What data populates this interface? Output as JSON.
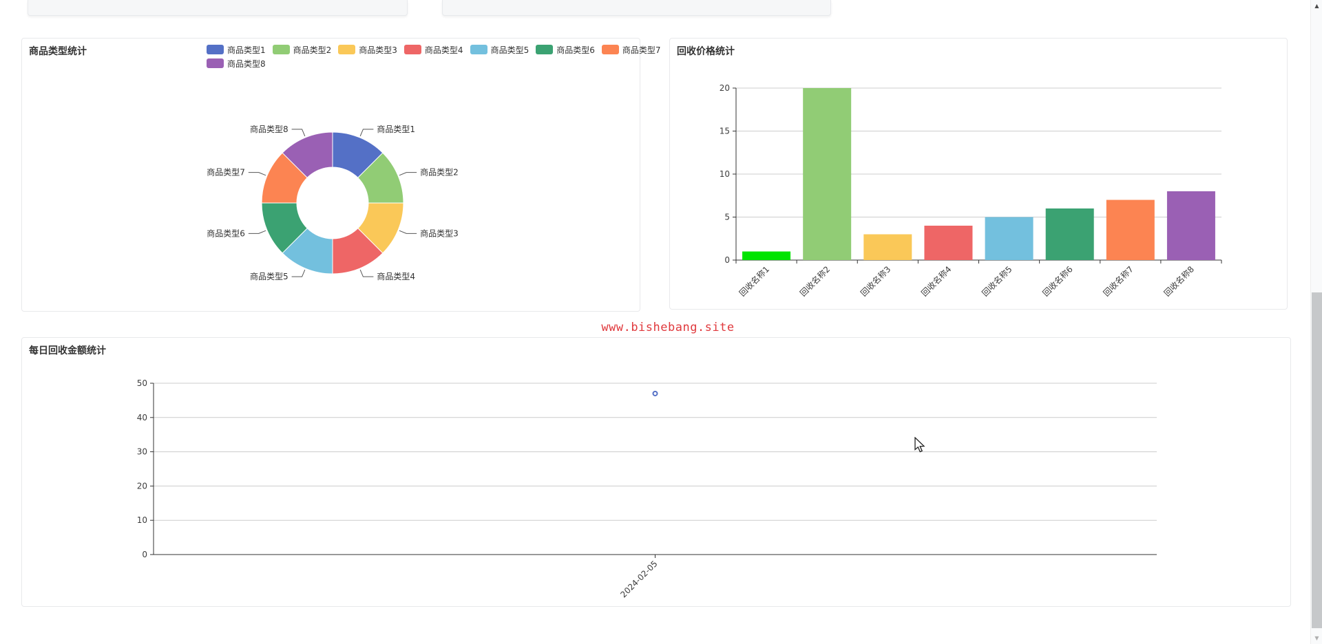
{
  "watermark": {
    "text": "www.bishebang.site",
    "color": "#e0393d"
  },
  "axis_style": {
    "axis_color": "#333333",
    "grid_color": "#cccccc",
    "label_color": "#3d3d3d",
    "connector_color": "#555555"
  },
  "chart_data": [
    {
      "id": "product-type-pie",
      "type": "pie",
      "title": "商品类型统计",
      "labels": [
        "商品类型1",
        "商品类型2",
        "商品类型3",
        "商品类型4",
        "商品类型5",
        "商品类型6",
        "商品类型7",
        "商品类型8"
      ],
      "values": [
        1,
        1,
        1,
        1,
        1,
        1,
        1,
        1
      ],
      "colors": [
        "#5470c6",
        "#91cc75",
        "#fac858",
        "#ee6666",
        "#73c0de",
        "#3ba272",
        "#fc8452",
        "#9a60b4"
      ],
      "legend": [
        "商品类型1",
        "商品类型2",
        "商品类型3",
        "商品类型4",
        "商品类型5",
        "商品类型6",
        "商品类型7",
        "商品类型8"
      ],
      "legend_position": "top",
      "donut": true
    },
    {
      "id": "recycle-price-bar",
      "type": "bar",
      "title": "回收价格统计",
      "categories": [
        "回收名称1",
        "回收名称2",
        "回收名称3",
        "回收名称4",
        "回收名称5",
        "回收名称6",
        "回收名称7",
        "回收名称8"
      ],
      "values": [
        1,
        20,
        3,
        4,
        5,
        6,
        7,
        8
      ],
      "colors": [
        "#00e400",
        "#91cc75",
        "#fac858",
        "#ee6666",
        "#73c0de",
        "#3ba272",
        "#fc8452",
        "#9a60b4"
      ],
      "xlabel": "",
      "ylabel": "",
      "ylim": [
        0,
        20
      ],
      "yticks": [
        0,
        5,
        10,
        15,
        20
      ],
      "grid": true,
      "xlabel_rotate": 45
    },
    {
      "id": "daily-amount-line",
      "type": "line",
      "title": "每日回收金额统计",
      "x": [
        "2024-02-05"
      ],
      "values": [
        47
      ],
      "color": "#5470c6",
      "symbol": "empty-circle",
      "xlabel": "",
      "ylabel": "",
      "ylim": [
        0,
        50
      ],
      "yticks": [
        0,
        10,
        20,
        30,
        40,
        50
      ],
      "grid": true,
      "xlabel_rotate": 45
    }
  ]
}
